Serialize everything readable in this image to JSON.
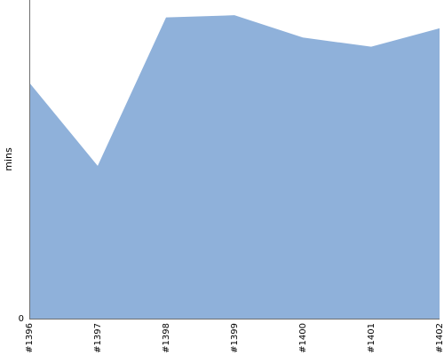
{
  "colors": {
    "area_fill": "#8fb1da",
    "axis": "#6f6f6f",
    "background": "#ffffff"
  },
  "chart_data": {
    "type": "area",
    "title": "",
    "xlabel": "",
    "ylabel": "mins",
    "categories": [
      "#1396",
      "#1397",
      "#1398",
      "#1399",
      "#1400",
      "#1401",
      "#1402"
    ],
    "series": [
      {
        "values": [
          43.4,
          28.1,
          55.4,
          55.8,
          51.7,
          50.0,
          53.4
        ]
      }
    ],
    "y_ticks": [
      0
    ],
    "ylim": [
      0,
      58.6
    ],
    "grid": false,
    "legend": "none"
  }
}
